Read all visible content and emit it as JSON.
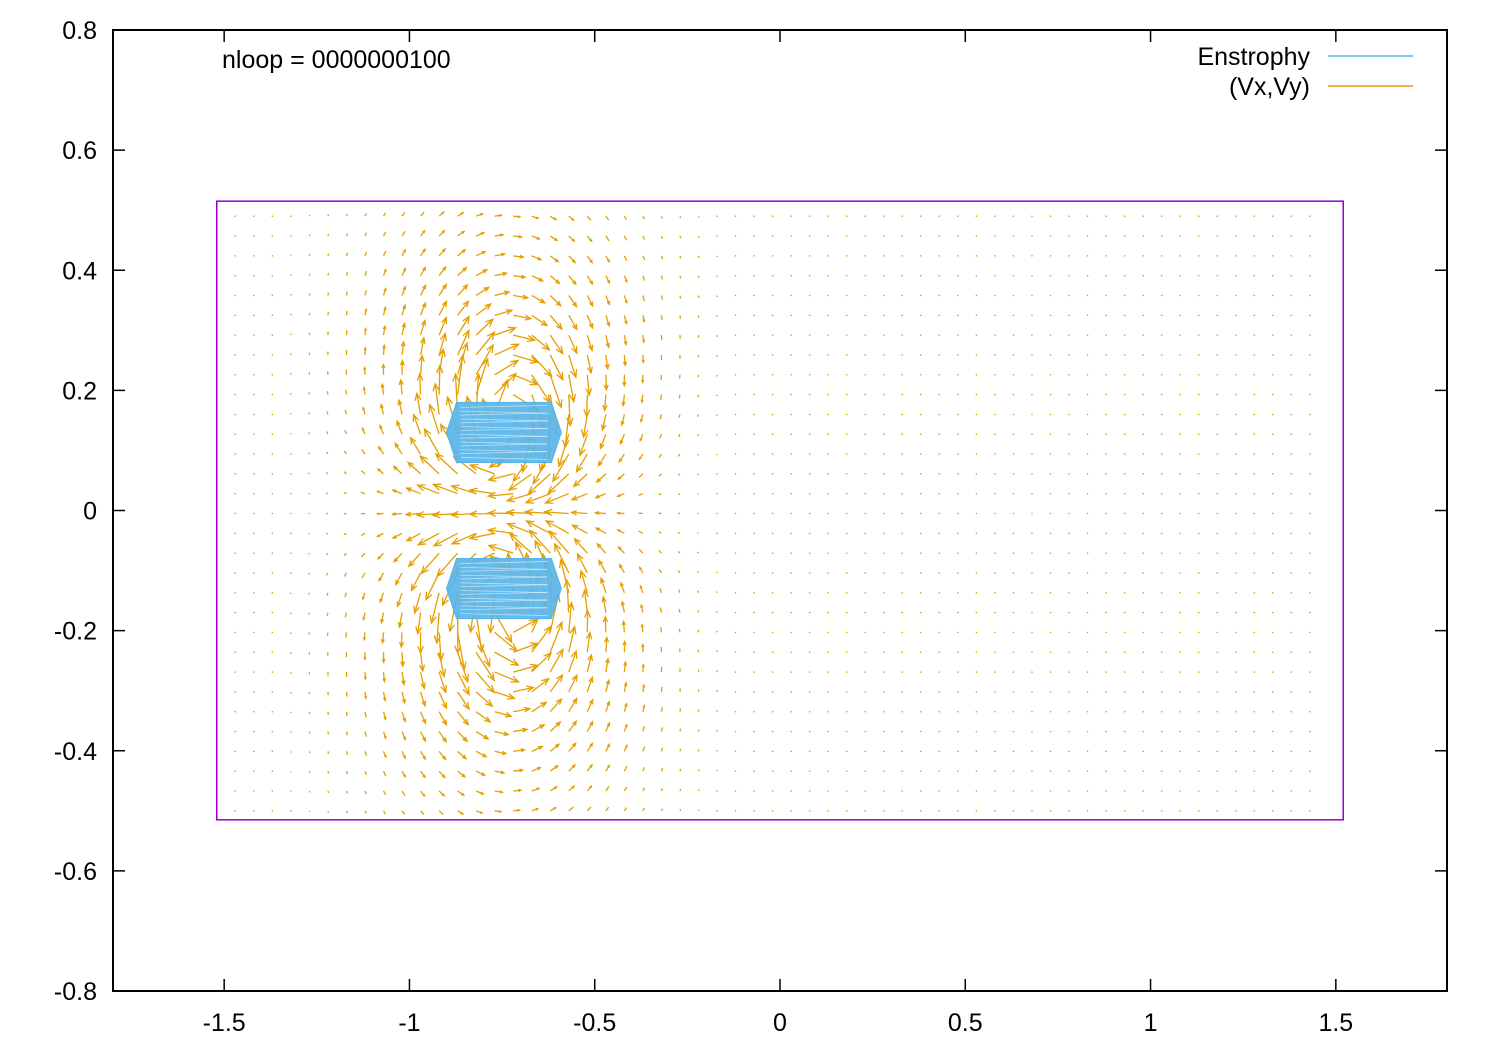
{
  "chart_data": {
    "type": "vector-field",
    "annotation": "nloop = 0000000100",
    "xlim": [
      -1.8,
      1.8
    ],
    "ylim": [
      -0.8,
      0.8
    ],
    "x_ticks": [
      -1.5,
      -1,
      -0.5,
      0,
      0.5,
      1,
      1.5
    ],
    "x_tick_labels": [
      "-1.5",
      "-1",
      "-0.5",
      "0",
      "0.5",
      "1",
      "1.5"
    ],
    "y_ticks": [
      0.8,
      0.6,
      0.4,
      0.2,
      0,
      -0.2,
      -0.4,
      -0.6,
      -0.8
    ],
    "y_tick_labels": [
      "0.8",
      "0.6",
      "0.4",
      "0.2",
      "0",
      "-0.2",
      "-0.4",
      "-0.6",
      "-0.8"
    ],
    "grid": false,
    "legend_position": "top-right",
    "legend": [
      {
        "label": "Enstrophy",
        "color": "#56b4e9"
      },
      {
        "label": "(Vx,Vy)",
        "color": "#e69f00"
      }
    ],
    "domain_box": {
      "x": [
        -1.52,
        1.52
      ],
      "y": [
        -0.515,
        0.515
      ],
      "color": "#9400d3"
    },
    "enstrophy_regions": [
      {
        "x": [
          -0.9,
          -0.59
        ],
        "y": [
          0.08,
          0.18
        ]
      },
      {
        "x": [
          -0.9,
          -0.59
        ],
        "y": [
          -0.18,
          -0.08
        ]
      }
    ],
    "vortices": [
      {
        "x": -0.74,
        "y": 0.13,
        "circulation": -1
      },
      {
        "x": -0.74,
        "y": -0.13,
        "circulation": 1
      }
    ],
    "field_colors": {
      "axes": "#000000",
      "arrows": "#e69f00",
      "enstrophy": "#56b4e9",
      "box": "#9400d3"
    }
  }
}
